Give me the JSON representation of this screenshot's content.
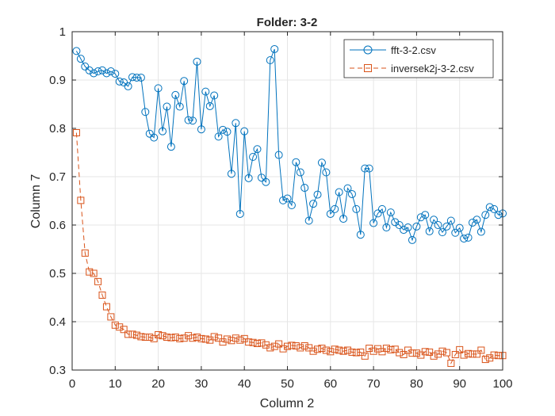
{
  "chart_data": {
    "type": "line",
    "title": "Folder: 3-2",
    "xlabel": "Column 2",
    "ylabel": "Column 7",
    "xlim": [
      0,
      100
    ],
    "ylim": [
      0.3,
      1.0
    ],
    "xticks": [
      "0",
      "10",
      "20",
      "30",
      "40",
      "50",
      "60",
      "70",
      "80",
      "90",
      "100"
    ],
    "yticks": [
      "0.3",
      "0.4",
      "0.5",
      "0.6",
      "0.7",
      "0.8",
      "0.9",
      "1"
    ],
    "grid": true,
    "legend_position": "top-right",
    "series": [
      {
        "name": "fft-3-2.csv",
        "color": "#0072BD",
        "line_style": "solid",
        "marker": "circle",
        "x": [
          1,
          2,
          3,
          4,
          5,
          6,
          7,
          8,
          9,
          10,
          11,
          12,
          13,
          14,
          15,
          16,
          17,
          18,
          19,
          20,
          21,
          22,
          23,
          24,
          25,
          26,
          27,
          28,
          29,
          30,
          31,
          32,
          33,
          34,
          35,
          36,
          37,
          38,
          39,
          40,
          41,
          42,
          43,
          44,
          45,
          46,
          47,
          48,
          49,
          50,
          51,
          52,
          53,
          54,
          55,
          56,
          57,
          58,
          59,
          60,
          61,
          62,
          63,
          64,
          65,
          66,
          67,
          68,
          69,
          70,
          71,
          72,
          73,
          74,
          75,
          76,
          77,
          78,
          79,
          80,
          81,
          82,
          83,
          84,
          85,
          86,
          87,
          88,
          89,
          90,
          91,
          92,
          93,
          94,
          95,
          96,
          97,
          98,
          99,
          100
        ],
        "y": [
          0.96,
          0.944,
          0.928,
          0.92,
          0.914,
          0.918,
          0.92,
          0.914,
          0.918,
          0.913,
          0.897,
          0.895,
          0.887,
          0.906,
          0.905,
          0.905,
          0.834,
          0.789,
          0.781,
          0.883,
          0.794,
          0.845,
          0.762,
          0.869,
          0.845,
          0.898,
          0.817,
          0.816,
          0.938,
          0.798,
          0.876,
          0.846,
          0.868,
          0.783,
          0.797,
          0.793,
          0.706,
          0.811,
          0.623,
          0.794,
          0.697,
          0.741,
          0.757,
          0.698,
          0.689,
          0.941,
          0.964,
          0.745,
          0.651,
          0.655,
          0.641,
          0.73,
          0.709,
          0.677,
          0.609,
          0.644,
          0.663,
          0.729,
          0.709,
          0.623,
          0.633,
          0.668,
          0.613,
          0.676,
          0.664,
          0.633,
          0.58,
          0.717,
          0.717,
          0.604,
          0.624,
          0.633,
          0.595,
          0.626,
          0.606,
          0.6,
          0.59,
          0.595,
          0.569,
          0.597,
          0.616,
          0.621,
          0.587,
          0.611,
          0.6,
          0.585,
          0.597,
          0.609,
          0.584,
          0.594,
          0.572,
          0.574,
          0.605,
          0.611,
          0.586,
          0.621,
          0.637,
          0.633,
          0.621,
          0.624
        ]
      },
      {
        "name": "inversek2j-3-2.csv",
        "color": "#D95319",
        "line_style": "dashed",
        "marker": "square",
        "x": [
          1,
          2,
          3,
          4,
          5,
          6,
          7,
          8,
          9,
          10,
          11,
          12,
          13,
          14,
          15,
          16,
          17,
          18,
          19,
          20,
          21,
          22,
          23,
          24,
          25,
          26,
          27,
          28,
          29,
          30,
          31,
          32,
          33,
          34,
          35,
          36,
          37,
          38,
          39,
          40,
          41,
          42,
          43,
          44,
          45,
          46,
          47,
          48,
          49,
          50,
          51,
          52,
          53,
          54,
          55,
          56,
          57,
          58,
          59,
          60,
          61,
          62,
          63,
          64,
          65,
          66,
          67,
          68,
          69,
          70,
          71,
          72,
          73,
          74,
          75,
          76,
          77,
          78,
          79,
          80,
          81,
          82,
          83,
          84,
          85,
          86,
          87,
          88,
          89,
          90,
          91,
          92,
          93,
          94,
          95,
          96,
          97,
          98,
          99,
          100
        ],
        "y": [
          0.791,
          0.651,
          0.542,
          0.503,
          0.5,
          0.483,
          0.455,
          0.431,
          0.41,
          0.393,
          0.389,
          0.384,
          0.374,
          0.374,
          0.372,
          0.369,
          0.368,
          0.368,
          0.365,
          0.373,
          0.371,
          0.368,
          0.367,
          0.368,
          0.365,
          0.366,
          0.371,
          0.366,
          0.368,
          0.365,
          0.364,
          0.362,
          0.369,
          0.366,
          0.358,
          0.364,
          0.361,
          0.366,
          0.362,
          0.365,
          0.358,
          0.357,
          0.355,
          0.356,
          0.352,
          0.346,
          0.349,
          0.354,
          0.344,
          0.349,
          0.351,
          0.35,
          0.346,
          0.35,
          0.346,
          0.339,
          0.343,
          0.345,
          0.341,
          0.338,
          0.343,
          0.341,
          0.339,
          0.341,
          0.337,
          0.336,
          0.337,
          0.329,
          0.345,
          0.339,
          0.344,
          0.338,
          0.345,
          0.342,
          0.343,
          0.336,
          0.332,
          0.341,
          0.335,
          0.335,
          0.331,
          0.338,
          0.337,
          0.329,
          0.333,
          0.339,
          0.336,
          0.314,
          0.332,
          0.342,
          0.331,
          0.334,
          0.333,
          0.333,
          0.341,
          0.322,
          0.325,
          0.331,
          0.33,
          0.33
        ]
      }
    ]
  }
}
